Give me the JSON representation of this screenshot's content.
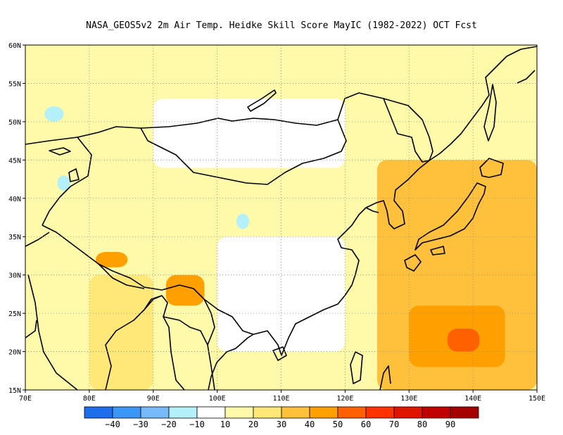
{
  "title": "NASA_GEOS5v2  2m Air Temp. Heidke Skill Score MayIC (1982-2022) OCT Fcst",
  "map": {
    "lon_range": [
      70,
      150
    ],
    "lat_range": [
      15,
      60
    ],
    "lon_ticks": [
      {
        "value": 70,
        "label": "70E"
      },
      {
        "value": 80,
        "label": "80E"
      },
      {
        "value": 90,
        "label": "90E"
      },
      {
        "value": 100,
        "label": "100E"
      },
      {
        "value": 110,
        "label": "110E"
      },
      {
        "value": 120,
        "label": "120E"
      },
      {
        "value": 130,
        "label": "130E"
      },
      {
        "value": 140,
        "label": "140E"
      },
      {
        "value": 150,
        "label": "150E"
      }
    ],
    "lat_ticks": [
      {
        "value": 15,
        "label": "15N"
      },
      {
        "value": 20,
        "label": "20N"
      },
      {
        "value": 25,
        "label": "25N"
      },
      {
        "value": 30,
        "label": "30N"
      },
      {
        "value": 35,
        "label": "35N"
      },
      {
        "value": 40,
        "label": "40N"
      },
      {
        "value": 45,
        "label": "45N"
      },
      {
        "value": 50,
        "label": "50N"
      },
      {
        "value": 55,
        "label": "55N"
      },
      {
        "value": 60,
        "label": "60N"
      }
    ],
    "gridlines": "dotted"
  },
  "colorbar": {
    "colors": [
      "#1e6eeb",
      "#3c96f5",
      "#78b9fa",
      "#b4f0fa",
      "#ffffff",
      "#fffaaa",
      "#ffe878",
      "#ffc03c",
      "#ffa000",
      "#ff6000",
      "#ff3200",
      "#e11400",
      "#c00000",
      "#a50000"
    ],
    "labels": [
      "−40",
      "−30",
      "−20",
      "−10",
      "10",
      "20",
      "30",
      "40",
      "50",
      "60",
      "70",
      "80",
      "90"
    ]
  },
  "chart_data": {
    "type": "heatmap",
    "title": "NASA_GEOS5v2  2m Air Temp. Heidke Skill Score MayIC (1982-2022) OCT Fcst",
    "xlim": [
      70,
      150
    ],
    "ylim": [
      15,
      60
    ],
    "colorbar_levels": [
      -40,
      -30,
      -20,
      -10,
      10,
      20,
      30,
      40,
      50,
      60,
      70,
      80,
      90
    ],
    "regions": [
      {
        "lon_range": [
          70,
          150
        ],
        "lat_range": [
          15,
          60
        ],
        "level": 10
      },
      {
        "lon_range": [
          90,
          120
        ],
        "lat_range": [
          44,
          53
        ],
        "level": -10
      },
      {
        "lon_range": [
          100,
          120
        ],
        "lat_range": [
          20,
          35
        ],
        "level": -10
      },
      {
        "lon_range": [
          80,
          90
        ],
        "lat_range": [
          15,
          30
        ],
        "level": 20
      },
      {
        "lon_range": [
          125,
          150
        ],
        "lat_range": [
          15,
          45
        ],
        "level": 30
      },
      {
        "lon_range": [
          130,
          145
        ],
        "lat_range": [
          18,
          26
        ],
        "level": 40
      },
      {
        "lon_range": [
          136,
          141
        ],
        "lat_range": [
          20,
          23
        ],
        "level": 50
      },
      {
        "lon_range": [
          92,
          98
        ],
        "lat_range": [
          26,
          30
        ],
        "level": 40
      },
      {
        "lon_range": [
          81,
          86
        ],
        "lat_range": [
          31,
          33
        ],
        "level": 40
      },
      {
        "lon_range": [
          73,
          76
        ],
        "lat_range": [
          50,
          52
        ],
        "level": -20
      },
      {
        "lon_range": [
          75,
          77
        ],
        "lat_range": [
          41,
          43
        ],
        "level": -20
      },
      {
        "lon_range": [
          103,
          105
        ],
        "lat_range": [
          36,
          38
        ],
        "level": -20
      }
    ]
  }
}
